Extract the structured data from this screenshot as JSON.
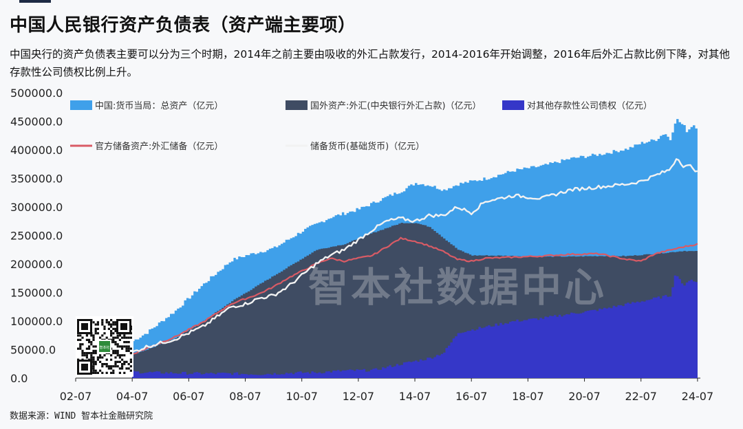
{
  "header": {
    "title": "中国人民银行资产负债表（资产端主要项）",
    "subtitle": "中国央行的资产负债表主要可以分为三个时期，2014年之前主要由吸收的外汇占款发行，2014-2016年开始调整，2016年后外汇占款比例下降，对其他存款性公司债权比例上升。"
  },
  "watermark": "智本社数据中心",
  "source_text": "数据来源：WIND 智本社金融研究院",
  "qr_logo_text": "智本社",
  "colors": {
    "total_assets": "#3fa0ea",
    "forex_holdings": "#3f4c63",
    "claims_on_odc": "#3537c8",
    "reserves": "#d95b65",
    "base_money": "#f2f2f2",
    "background": "#f7f8fa"
  },
  "chart_data": {
    "type": "area",
    "title": "",
    "xlabel": "",
    "ylabel": "",
    "ylim": [
      0,
      500000
    ],
    "y_ticks": [
      "500000.0",
      "450000.0",
      "400000.0",
      "350000.0",
      "300000.0",
      "250000.0",
      "200000.0",
      "150000.0",
      "100000.0",
      "50000.0",
      "0.0"
    ],
    "x_ticks": [
      "02-07",
      "04-07",
      "06-07",
      "08-07",
      "10-07",
      "12-07",
      "14-07",
      "16-07",
      "18-07",
      "20-07",
      "22-07",
      "24-07"
    ],
    "x_range": [
      2002.5,
      2024.6
    ],
    "grid": false,
    "legend_position": "top",
    "series": [
      {
        "name": "中国:货币当局：总资产（亿元）",
        "kind": "area",
        "x": [
          2004.5,
          2005.0,
          2006.0,
          2007.0,
          2008.0,
          2008.5,
          2009.5,
          2010.5,
          2011.5,
          2012.5,
          2013.5,
          2014.0,
          2014.5,
          2015.0,
          2015.5,
          2016.0,
          2017.0,
          2018.0,
          2019.0,
          2020.0,
          2021.0,
          2022.0,
          2022.5,
          2023.0,
          2023.3,
          2023.5,
          2023.7,
          2024.0,
          2024.1,
          2024.3,
          2024.5
        ],
        "values": [
          65000,
          80000,
          118000,
          165000,
          207000,
          215000,
          228000,
          258000,
          282000,
          296000,
          318000,
          328000,
          342000,
          338000,
          330000,
          340000,
          350000,
          364000,
          372000,
          385000,
          392000,
          402000,
          412000,
          418000,
          430000,
          418000,
          455000,
          441000,
          432000,
          445000,
          437000
        ]
      },
      {
        "name": "国外资产:外汇(中央银行外汇占款)（亿元）",
        "kind": "area",
        "x": [
          2004.5,
          2005.0,
          2006.0,
          2007.0,
          2008.0,
          2009.0,
          2010.0,
          2011.0,
          2012.0,
          2013.0,
          2014.0,
          2014.5,
          2015.0,
          2015.5,
          2016.0,
          2016.5,
          2017.0,
          2018.0,
          2019.0,
          2020.0,
          2021.0,
          2022.0,
          2023.0,
          2024.0,
          2024.5
        ],
        "values": [
          42000,
          50000,
          70000,
          100000,
          135000,
          165000,
          195000,
          225000,
          235000,
          255000,
          272000,
          272000,
          265000,
          245000,
          225000,
          215000,
          215000,
          214000,
          213000,
          213000,
          214000,
          214000,
          218000,
          223000,
          222000
        ]
      },
      {
        "name": "对其他存款性公司债权（亿元）",
        "kind": "area",
        "x": [
          2004.5,
          2005.0,
          2006.0,
          2007.0,
          2008.0,
          2009.0,
          2010.0,
          2011.0,
          2012.0,
          2013.0,
          2014.0,
          2014.5,
          2015.0,
          2015.5,
          2016.0,
          2016.5,
          2017.0,
          2017.5,
          2018.0,
          2019.0,
          2020.0,
          2021.0,
          2021.5,
          2022.0,
          2022.5,
          2023.0,
          2023.5,
          2023.7,
          2024.0,
          2024.2,
          2024.5
        ],
        "values": [
          11000,
          10000,
          9000,
          8000,
          8000,
          7000,
          9000,
          10000,
          13000,
          14000,
          25000,
          30000,
          35000,
          45000,
          80000,
          85000,
          90000,
          95000,
          100000,
          105000,
          113000,
          120000,
          125000,
          130000,
          135000,
          140000,
          145000,
          185000,
          160000,
          175000,
          165000
        ]
      },
      {
        "name": "官方储备资产:外汇储备（亿元）",
        "kind": "line",
        "x": [
          2004.5,
          2005.0,
          2006.0,
          2007.0,
          2008.0,
          2009.0,
          2009.5,
          2010.0,
          2011.0,
          2011.5,
          2012.0,
          2013.0,
          2013.5,
          2014.0,
          2014.5,
          2015.0,
          2015.5,
          2016.0,
          2016.5,
          2017.0,
          2018.0,
          2019.0,
          2020.0,
          2021.0,
          2022.0,
          2022.5,
          2023.0,
          2024.0,
          2024.5
        ],
        "values": [
          42000,
          52000,
          72000,
          98000,
          130000,
          148000,
          160000,
          175000,
          200000,
          210000,
          205000,
          215000,
          230000,
          245000,
          240000,
          232000,
          222000,
          208000,
          205000,
          210000,
          212000,
          214000,
          217000,
          218000,
          208000,
          205000,
          218000,
          230000,
          235000
        ]
      },
      {
        "name": "储备货币(基础货币)（亿元）",
        "kind": "line",
        "x": [
          2004.5,
          2005.0,
          2006.0,
          2007.0,
          2008.0,
          2008.5,
          2009.0,
          2009.5,
          2010.0,
          2011.0,
          2011.5,
          2012.0,
          2013.0,
          2013.5,
          2014.0,
          2014.5,
          2015.0,
          2015.5,
          2016.0,
          2016.5,
          2017.0,
          2018.0,
          2019.0,
          2020.0,
          2021.0,
          2022.0,
          2022.5,
          2023.0,
          2023.5,
          2023.8,
          2024.0,
          2024.3,
          2024.5
        ],
        "values": [
          45000,
          55000,
          68000,
          90000,
          125000,
          130000,
          140000,
          145000,
          160000,
          200000,
          215000,
          225000,
          260000,
          275000,
          280000,
          275000,
          285000,
          285000,
          300000,
          290000,
          310000,
          320000,
          315000,
          330000,
          335000,
          340000,
          345000,
          355000,
          365000,
          388000,
          370000,
          372000,
          360000
        ]
      }
    ]
  }
}
